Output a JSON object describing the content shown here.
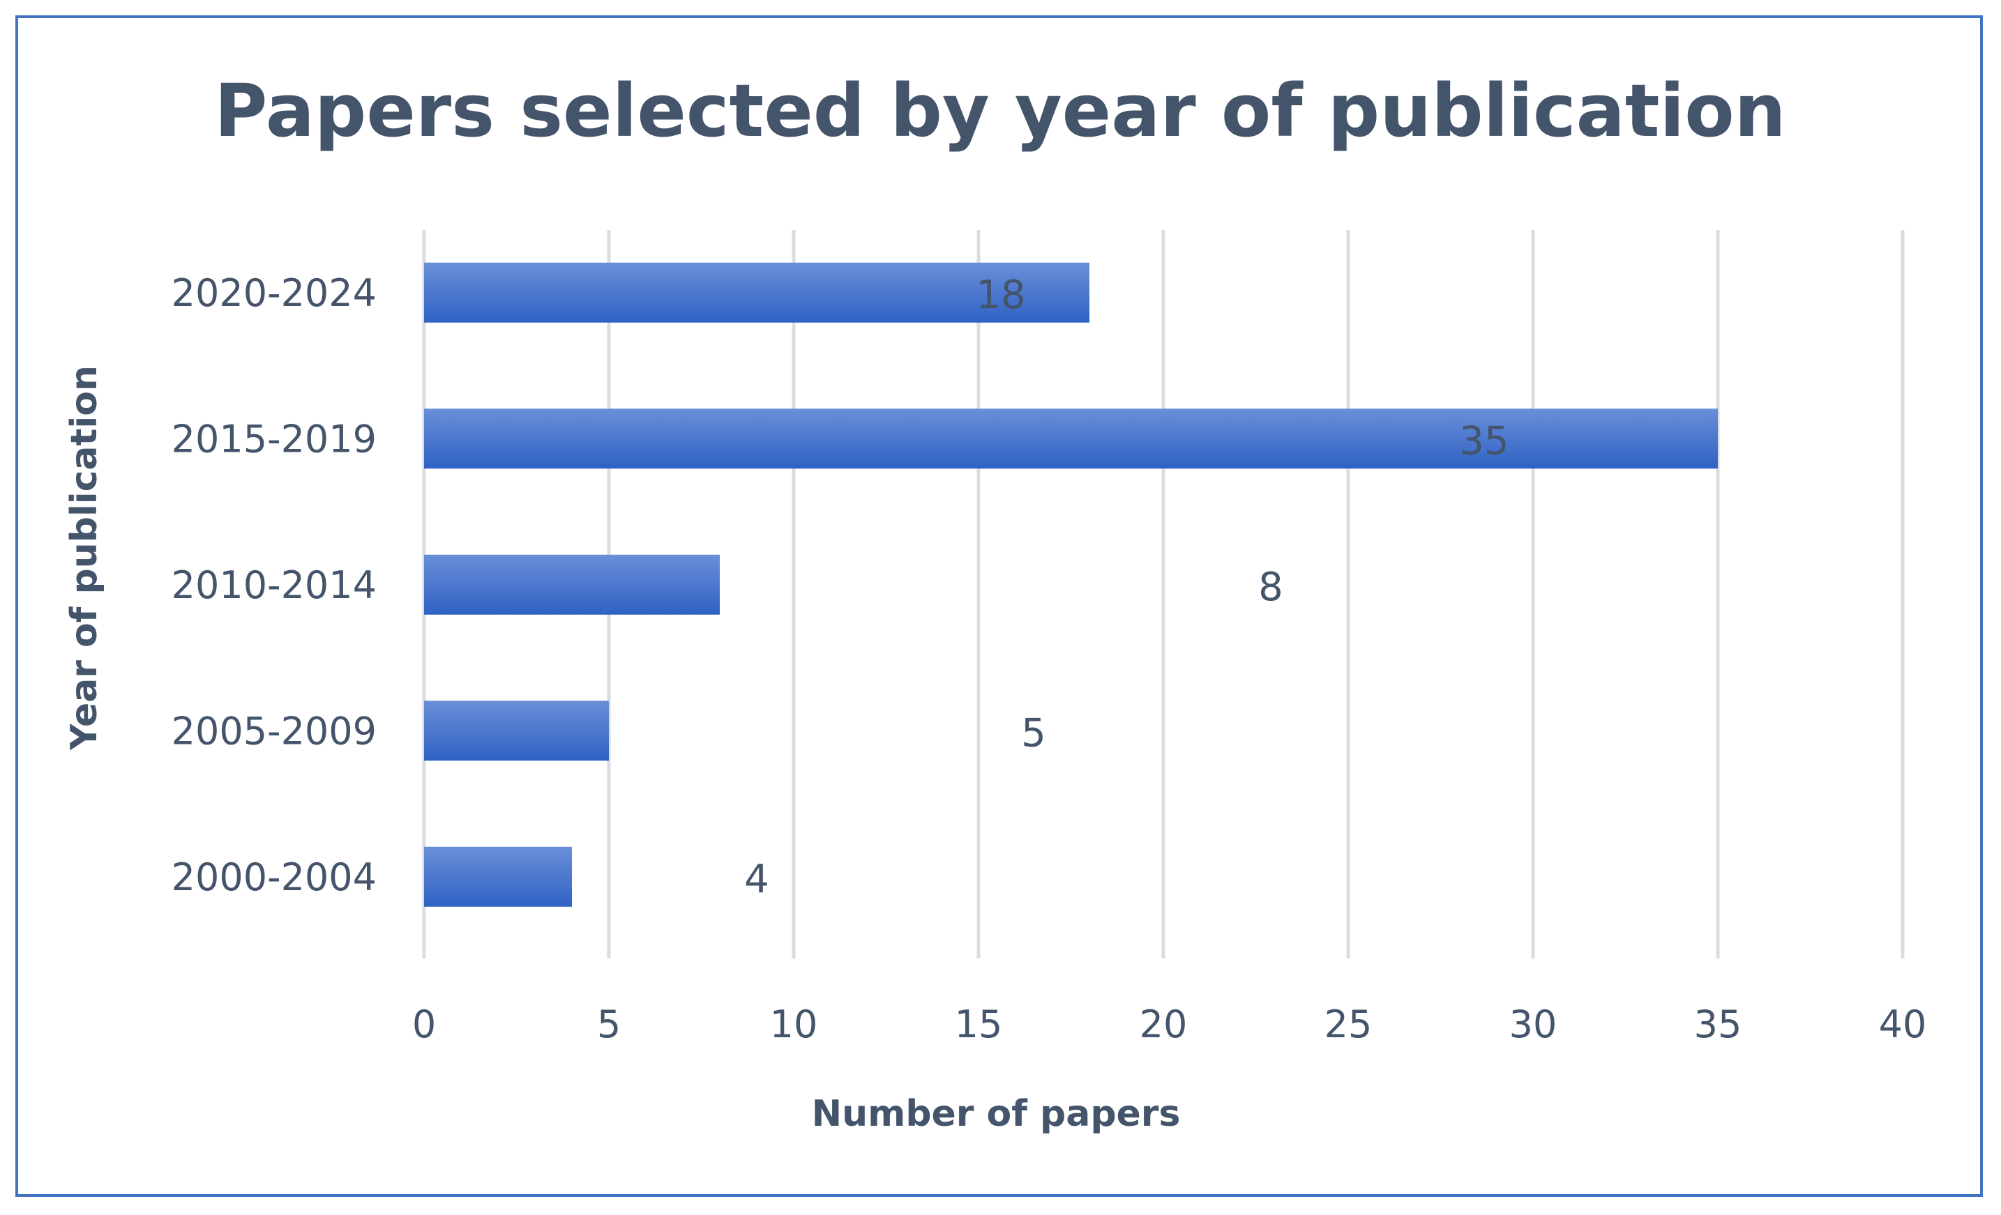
{
  "chart_data": {
    "type": "bar",
    "orientation": "horizontal",
    "title": "Papers selected by year of publication",
    "xlabel": "Number of papers",
    "ylabel": "Year of publication",
    "categories": [
      "2020-2024",
      "2015-2019",
      "2010-2014",
      "2005-2009",
      "2000-2004"
    ],
    "values": [
      18,
      35,
      8,
      5,
      4
    ],
    "xlim": [
      0,
      40
    ],
    "xticks": [
      0,
      5,
      10,
      15,
      20,
      25,
      30,
      35,
      40
    ],
    "grid": "vertical",
    "legend": "none",
    "bar_color": "#4472c4",
    "bar_color_light": "#6a8fd8",
    "bar_color_dark": "#2f62c4",
    "text_color": "#44546a",
    "border_color": "#4472c4"
  }
}
